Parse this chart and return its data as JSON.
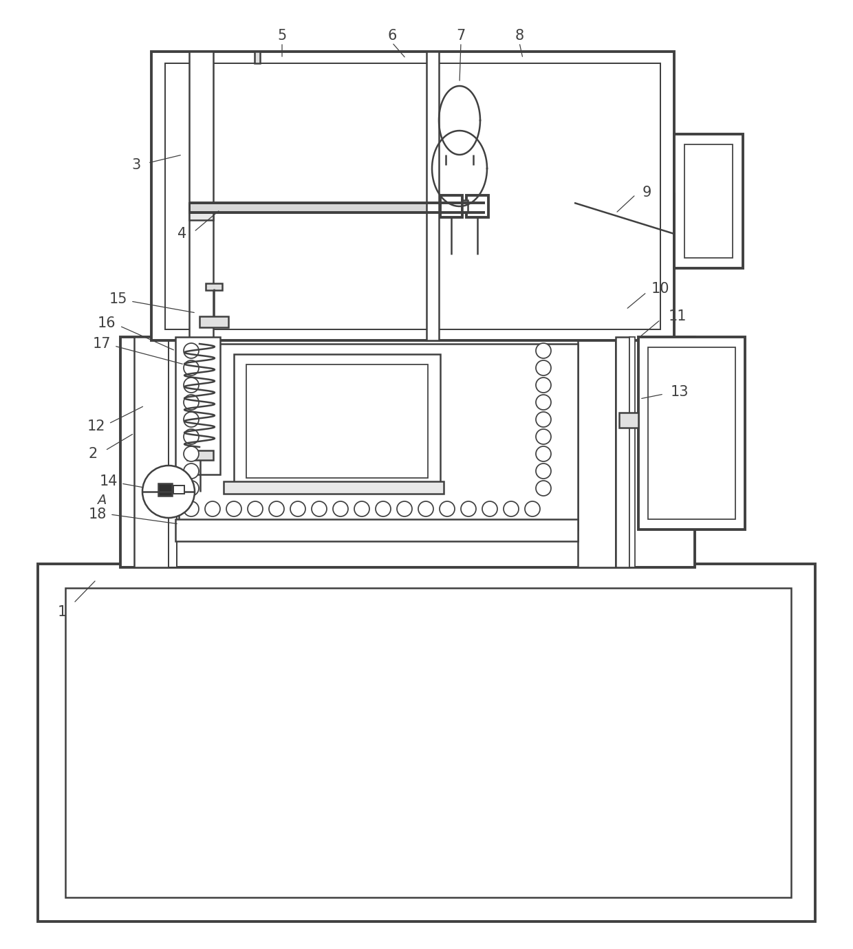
{
  "bg_color": "#ffffff",
  "line_color": "#404040",
  "lw": 1.8,
  "tlw": 2.8
}
